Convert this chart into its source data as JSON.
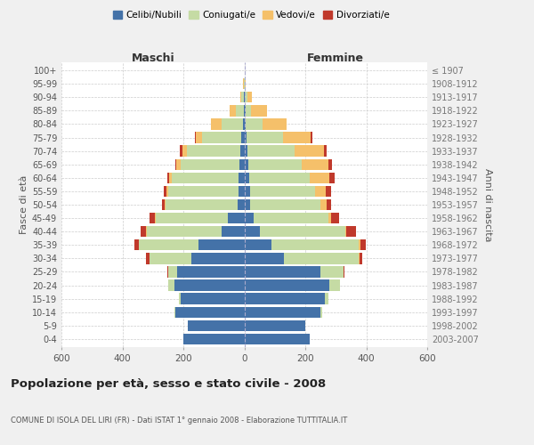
{
  "age_groups": [
    "100+",
    "95-99",
    "90-94",
    "85-89",
    "80-84",
    "75-79",
    "70-74",
    "65-69",
    "60-64",
    "55-59",
    "50-54",
    "45-49",
    "40-44",
    "35-39",
    "30-34",
    "25-29",
    "20-24",
    "15-19",
    "10-14",
    "5-9",
    "0-4"
  ],
  "birth_years": [
    "≤ 1907",
    "1908-1912",
    "1913-1917",
    "1918-1922",
    "1923-1927",
    "1928-1932",
    "1933-1937",
    "1938-1942",
    "1943-1947",
    "1948-1952",
    "1953-1957",
    "1958-1962",
    "1963-1967",
    "1968-1972",
    "1973-1977",
    "1978-1982",
    "1983-1987",
    "1988-1992",
    "1993-1997",
    "1998-2002",
    "2003-2007"
  ],
  "maschi": {
    "celibi": [
      0,
      0,
      1,
      2,
      5,
      10,
      14,
      15,
      18,
      20,
      22,
      55,
      75,
      150,
      175,
      220,
      230,
      210,
      225,
      185,
      200
    ],
    "coniugati": [
      0,
      2,
      8,
      25,
      70,
      130,
      175,
      195,
      220,
      230,
      235,
      235,
      245,
      195,
      135,
      30,
      20,
      5,
      5,
      0,
      0
    ],
    "vedovi": [
      0,
      2,
      5,
      20,
      35,
      18,
      15,
      12,
      8,
      5,
      3,
      2,
      2,
      2,
      2,
      1,
      0,
      0,
      0,
      0,
      0
    ],
    "divorziati": [
      0,
      0,
      0,
      0,
      0,
      3,
      8,
      5,
      8,
      10,
      10,
      20,
      18,
      15,
      10,
      2,
      0,
      0,
      0,
      0,
      0
    ]
  },
  "femmine": {
    "nubili": [
      0,
      0,
      2,
      3,
      5,
      8,
      10,
      12,
      15,
      18,
      20,
      30,
      50,
      90,
      130,
      250,
      280,
      265,
      250,
      200,
      215
    ],
    "coniugate": [
      0,
      2,
      8,
      20,
      55,
      120,
      155,
      175,
      200,
      215,
      230,
      245,
      280,
      285,
      245,
      75,
      35,
      10,
      5,
      0,
      0
    ],
    "vedove": [
      1,
      3,
      15,
      50,
      80,
      90,
      95,
      90,
      65,
      35,
      20,
      10,
      5,
      5,
      3,
      2,
      0,
      0,
      0,
      0,
      0
    ],
    "divorziate": [
      0,
      0,
      0,
      0,
      0,
      5,
      10,
      10,
      15,
      18,
      15,
      25,
      30,
      18,
      10,
      2,
      0,
      0,
      0,
      0,
      0
    ]
  },
  "colors": {
    "celibi": "#4472a8",
    "coniugati": "#c5dba4",
    "vedovi": "#f5c06a",
    "divorziati": "#c0392b"
  },
  "title": "Popolazione per età, sesso e stato civile - 2008",
  "subtitle": "COMUNE DI ISOLA DEL LIRI (FR) - Dati ISTAT 1° gennaio 2008 - Elaborazione TUTTITALIA.IT",
  "xlabel_left": "Maschi",
  "xlabel_right": "Femmine",
  "ylabel_left": "Fasce di età",
  "ylabel_right": "Anni di nascita",
  "xlim": 600,
  "bg_color": "#f0f0f0",
  "plot_bg": "#ffffff",
  "legend_labels": [
    "Celibi/Nubili",
    "Coniugati/e",
    "Vedovi/e",
    "Divorziati/e"
  ]
}
